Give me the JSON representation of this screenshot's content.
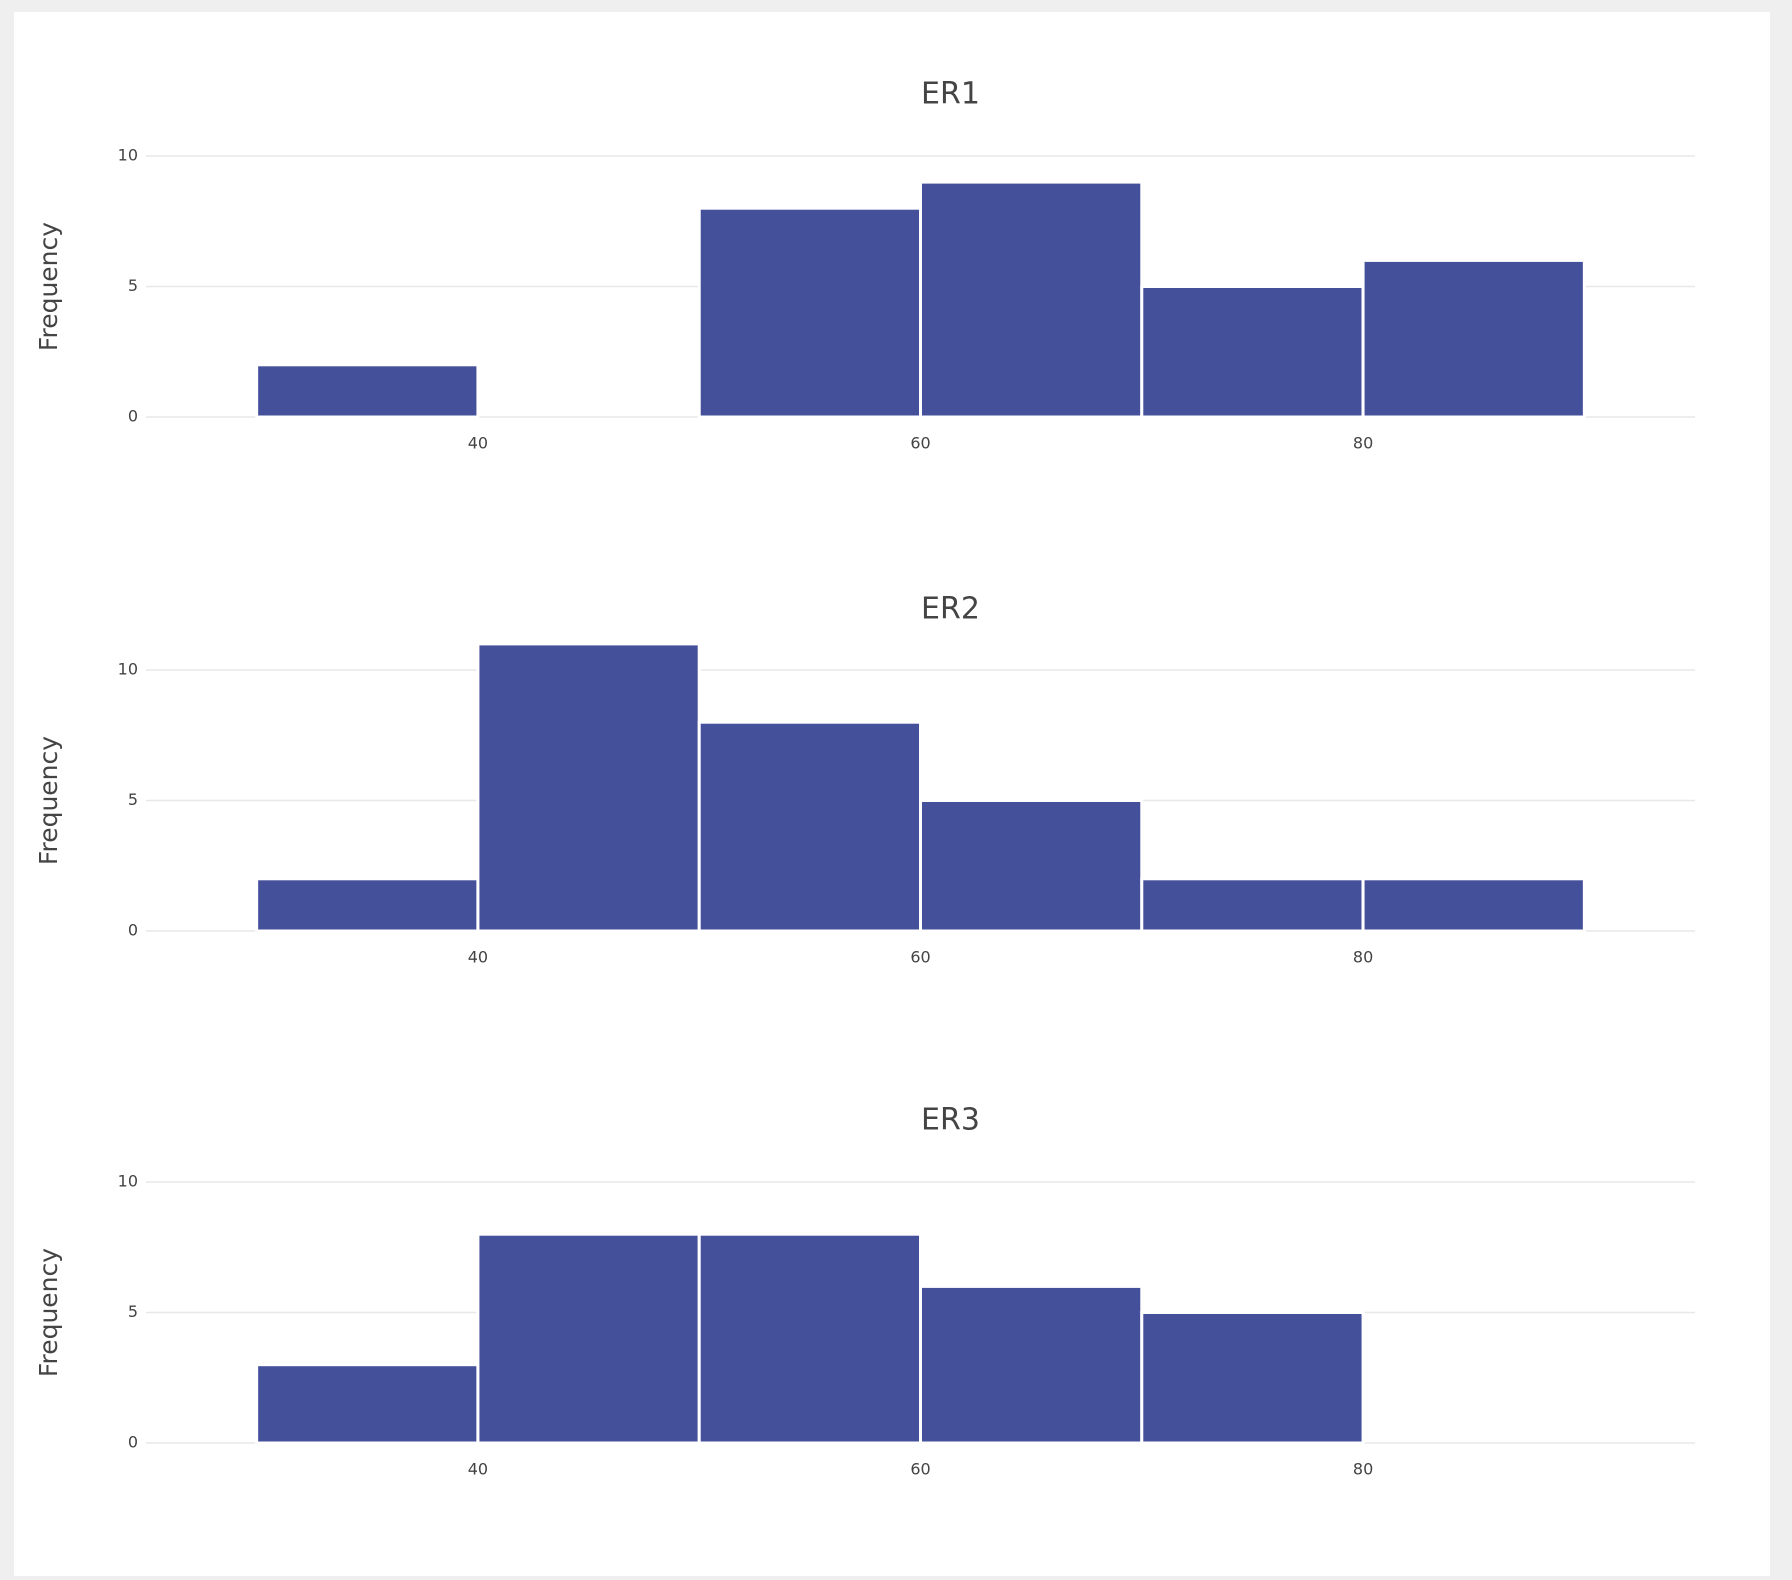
{
  "chart_data": [
    {
      "type": "histogram",
      "title": "ER1",
      "y_label": "Frequency",
      "bins": [
        30,
        40,
        50,
        60,
        70,
        80,
        90
      ],
      "values": [
        2,
        0,
        8,
        9,
        5,
        6
      ],
      "color": "#45509b",
      "xlim": [
        25,
        95
      ],
      "xticks": [
        40,
        60,
        80
      ],
      "ylim": [
        0,
        11.6
      ],
      "yticks": [
        0,
        5,
        10
      ],
      "grid": true
    },
    {
      "type": "histogram",
      "title": "ER2",
      "y_label": "Frequency",
      "bins": [
        30,
        40,
        50,
        60,
        70,
        80,
        90
      ],
      "values": [
        2,
        11,
        8,
        5,
        2,
        2
      ],
      "color": "#45509b",
      "xlim": [
        25,
        95
      ],
      "xticks": [
        40,
        60,
        80
      ],
      "ylim": [
        0,
        11.6
      ],
      "yticks": [
        0,
        5,
        10
      ],
      "grid": true
    },
    {
      "type": "histogram",
      "title": "ER3",
      "y_label": "Frequency",
      "bins": [
        30,
        40,
        50,
        60,
        70,
        80,
        90
      ],
      "values": [
        3,
        8,
        8,
        6,
        5,
        0
      ],
      "color": "#45509b",
      "xlim": [
        25,
        95
      ],
      "xticks": [
        40,
        60,
        80
      ],
      "ylim": [
        0,
        11.6
      ],
      "yticks": [
        0,
        5,
        10
      ],
      "grid": true
    }
  ]
}
